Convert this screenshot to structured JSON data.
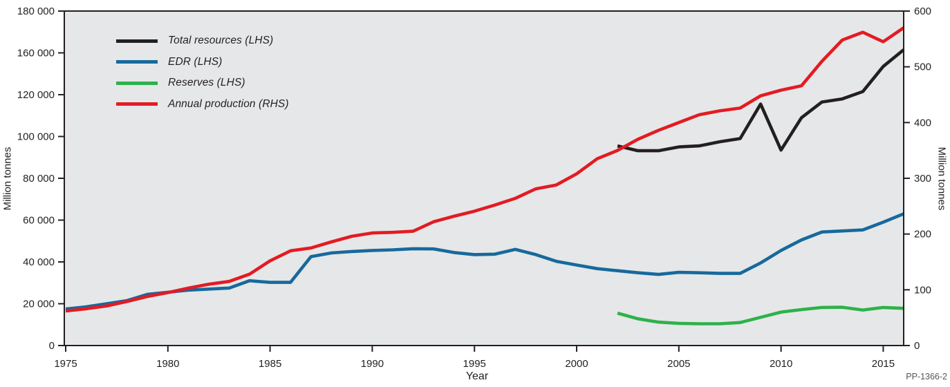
{
  "chart_data": {
    "type": "line",
    "xlabel": "Year",
    "ylabel_left": "Million tonnes",
    "ylabel_right": "Million tonnes",
    "figure_code": "PP-1366-2",
    "plot_bg": "#e6e7e8",
    "axis_color": "#231f20",
    "grid": false,
    "legend_position": "top-left-inside",
    "x": [
      1975,
      1976,
      1977,
      1978,
      1979,
      1980,
      1981,
      1982,
      1983,
      1984,
      1985,
      1986,
      1987,
      1988,
      1989,
      1990,
      1991,
      1992,
      1993,
      1994,
      1995,
      1996,
      1997,
      1998,
      1999,
      2000,
      2001,
      2002,
      2003,
      2004,
      2005,
      2006,
      2007,
      2008,
      2009,
      2010,
      2011,
      2012,
      2013,
      2014,
      2015,
      2016
    ],
    "x_tick_labels": [
      "1975",
      "1980",
      "1985",
      "1990",
      "1995",
      "2000",
      "2005",
      "2010",
      "2015"
    ],
    "x_tick_years": [
      1975,
      1980,
      1985,
      1990,
      1995,
      2000,
      2005,
      2010,
      2015
    ],
    "x_range": [
      1975,
      2016
    ],
    "left_axis": {
      "tick_labels_top_to_bottom": [
        "180 000",
        "160 000",
        "120 000",
        "100 000",
        "80 000",
        "60 000",
        "40 000",
        "20 000",
        "0"
      ],
      "tick_values_top_to_bottom": [
        180000,
        160000,
        120000,
        100000,
        80000,
        60000,
        40000,
        20000,
        0
      ]
    },
    "right_axis": {
      "tick_labels_top_to_bottom": [
        "600",
        "500",
        "400",
        "300",
        "200",
        "100",
        "0"
      ],
      "tick_values_top_to_bottom": [
        600,
        500,
        400,
        300,
        200,
        100,
        0
      ]
    },
    "series": [
      {
        "name": "Total resources (LHS)",
        "axis": "left",
        "color": "#231f20",
        "values": [
          null,
          null,
          null,
          null,
          null,
          null,
          null,
          null,
          null,
          null,
          null,
          null,
          null,
          null,
          null,
          null,
          null,
          null,
          null,
          null,
          null,
          null,
          null,
          null,
          null,
          null,
          null,
          95500,
          93200,
          93200,
          95000,
          95500,
          97500,
          99000,
          115500,
          93500,
          109000,
          116500,
          118000,
          123000,
          147000,
          161500
        ]
      },
      {
        "name": "EDR (LHS)",
        "axis": "left",
        "color": "#17699c",
        "values": [
          17500,
          18500,
          20000,
          21500,
          24500,
          25500,
          26500,
          27000,
          27500,
          31000,
          30200,
          30200,
          42500,
          44300,
          45000,
          45500,
          45800,
          46300,
          46200,
          44500,
          43500,
          43700,
          46000,
          43500,
          40300,
          38500,
          36800,
          35800,
          34800,
          34000,
          35000,
          34800,
          34500,
          34500,
          39500,
          45500,
          50500,
          54300,
          54800,
          55300,
          59000,
          63000
        ]
      },
      {
        "name": "Reserves (LHS)",
        "axis": "left",
        "color": "#2cb24a",
        "values": [
          null,
          null,
          null,
          null,
          null,
          null,
          null,
          null,
          null,
          null,
          null,
          null,
          null,
          null,
          null,
          null,
          null,
          null,
          null,
          null,
          null,
          null,
          null,
          null,
          null,
          null,
          null,
          15500,
          12800,
          11200,
          10600,
          10400,
          10400,
          11000,
          13500,
          16000,
          17200,
          18200,
          18300,
          17000,
          18200,
          17800
        ]
      },
      {
        "name": "Annual production (RHS)",
        "axis": "right",
        "color": "#e31b23",
        "values": [
          62,
          66,
          71,
          79,
          88,
          95,
          103,
          110,
          115,
          128,
          152,
          170,
          175,
          186,
          196,
          202,
          203,
          205,
          222,
          232,
          241,
          252,
          264,
          281,
          288,
          308,
          335,
          350,
          370,
          386,
          400,
          414,
          421,
          426,
          448,
          458,
          466,
          510,
          548,
          562,
          545,
          570
        ]
      }
    ]
  }
}
